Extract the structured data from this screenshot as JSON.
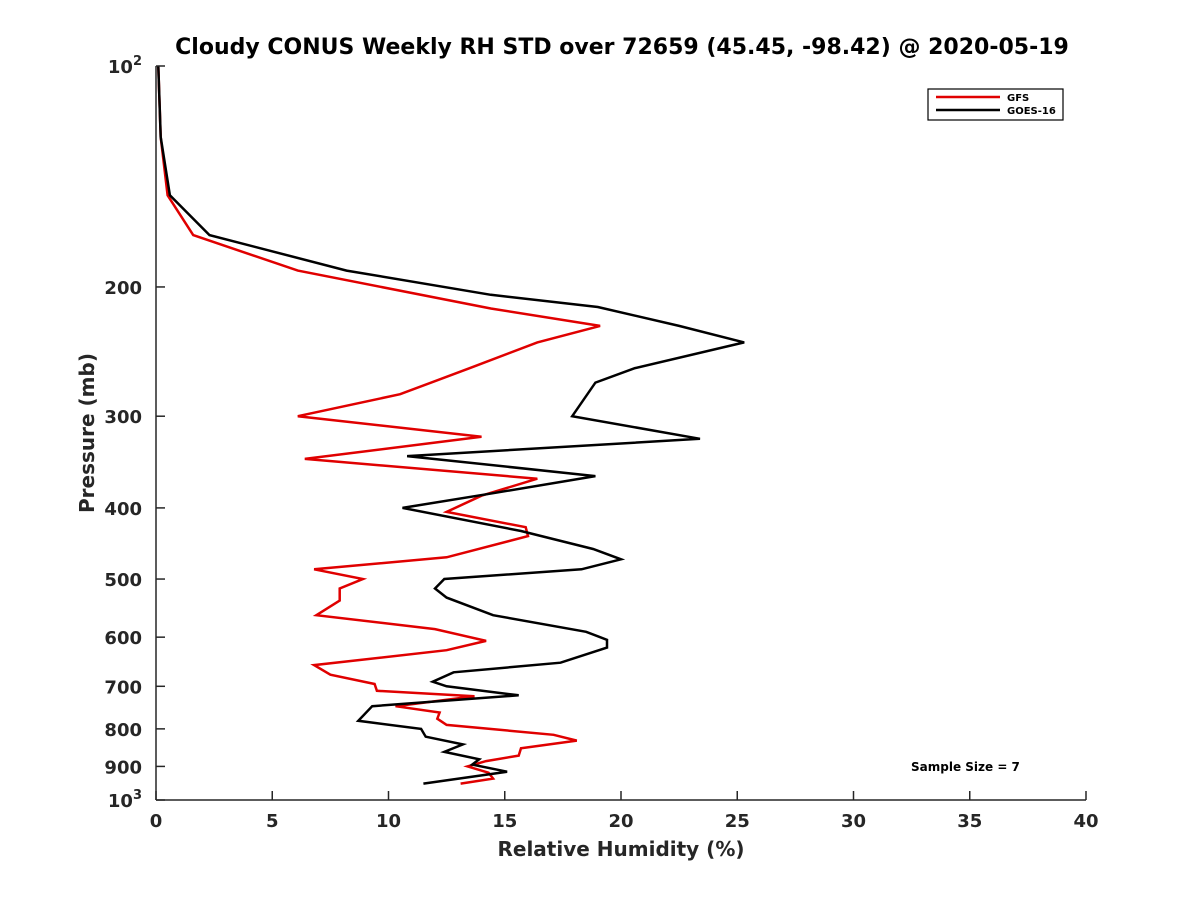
{
  "chart_data": {
    "type": "line",
    "title": "Cloudy CONUS Weekly RH STD over 72659 (45.45, -98.42) @ 2020-05-19",
    "xlabel": "Relative Humidity (%)",
    "ylabel": "Pressure (mb)",
    "xlim": [
      0,
      40
    ],
    "ylim": [
      100,
      1000
    ],
    "y_scale": "log",
    "y_reversed": true,
    "grid": false,
    "legend_position": "top-right",
    "x_ticks": [
      "0",
      "5",
      "10",
      "15",
      "20",
      "25",
      "30",
      "35",
      "40"
    ],
    "y_ticks": [
      {
        "value": 100,
        "base": "10",
        "exp": "2"
      },
      {
        "value": 200,
        "label": "200"
      },
      {
        "value": 300,
        "label": "300"
      },
      {
        "value": 400,
        "label": "400"
      },
      {
        "value": 500,
        "label": "500"
      },
      {
        "value": 600,
        "label": "600"
      },
      {
        "value": 700,
        "label": "700"
      },
      {
        "value": 800,
        "label": "800"
      },
      {
        "value": 900,
        "label": "900"
      },
      {
        "value": 1000,
        "base": "10",
        "exp": "3"
      }
    ],
    "annotation": "Sample Size = 7",
    "series": [
      {
        "name": "GFS",
        "color": "#e00000",
        "points": [
          [
            0.1,
            100
          ],
          [
            0.2,
            125
          ],
          [
            0.5,
            150
          ],
          [
            1.6,
            170
          ],
          [
            6.1,
            190
          ],
          [
            14.4,
            214
          ],
          [
            19.1,
            226
          ],
          [
            16.4,
            238
          ],
          [
            13.5,
            258
          ],
          [
            10.5,
            280
          ],
          [
            6.1,
            300
          ],
          [
            14.0,
            320
          ],
          [
            6.4,
            343
          ],
          [
            16.4,
            365
          ],
          [
            14.0,
            385
          ],
          [
            12.5,
            405
          ],
          [
            15.9,
            425
          ],
          [
            16.0,
            437
          ],
          [
            12.5,
            467
          ],
          [
            6.8,
            485
          ],
          [
            8.9,
            500
          ],
          [
            7.9,
            515
          ],
          [
            7.9,
            535
          ],
          [
            6.9,
            560
          ],
          [
            12.0,
            585
          ],
          [
            14.2,
            607
          ],
          [
            12.5,
            625
          ],
          [
            6.8,
            655
          ],
          [
            7.5,
            675
          ],
          [
            9.4,
            695
          ],
          [
            9.5,
            710
          ],
          [
            13.7,
            722
          ],
          [
            10.3,
            745
          ],
          [
            12.2,
            760
          ],
          [
            12.1,
            775
          ],
          [
            12.5,
            790
          ],
          [
            17.1,
            815
          ],
          [
            18.1,
            830
          ],
          [
            15.7,
            850
          ],
          [
            15.6,
            870
          ],
          [
            14.2,
            885
          ],
          [
            13.4,
            900
          ],
          [
            14.3,
            918
          ],
          [
            14.5,
            935
          ],
          [
            13.1,
            950
          ]
        ]
      },
      {
        "name": "GOES-16",
        "color": "#000000",
        "points": [
          [
            0.1,
            100
          ],
          [
            0.2,
            125
          ],
          [
            0.6,
            150
          ],
          [
            2.3,
            170
          ],
          [
            8.2,
            190
          ],
          [
            14.4,
            205
          ],
          [
            19.0,
            213
          ],
          [
            22.5,
            226
          ],
          [
            25.3,
            238
          ],
          [
            20.6,
            258
          ],
          [
            18.9,
            270
          ],
          [
            17.9,
            300
          ],
          [
            23.4,
            322
          ],
          [
            10.8,
            340
          ],
          [
            18.9,
            362
          ],
          [
            14.5,
            382
          ],
          [
            10.6,
            400
          ],
          [
            15.7,
            430
          ],
          [
            18.8,
            455
          ],
          [
            20.0,
            470
          ],
          [
            18.3,
            485
          ],
          [
            12.4,
            500
          ],
          [
            12.0,
            515
          ],
          [
            12.5,
            530
          ],
          [
            14.5,
            560
          ],
          [
            18.5,
            590
          ],
          [
            19.4,
            605
          ],
          [
            19.4,
            620
          ],
          [
            17.4,
            650
          ],
          [
            12.8,
            670
          ],
          [
            11.9,
            690
          ],
          [
            12.5,
            700
          ],
          [
            15.6,
            720
          ],
          [
            9.3,
            745
          ],
          [
            8.7,
            780
          ],
          [
            11.4,
            800
          ],
          [
            11.6,
            820
          ],
          [
            13.2,
            840
          ],
          [
            12.4,
            860
          ],
          [
            13.9,
            880
          ],
          [
            13.6,
            895
          ],
          [
            15.1,
            915
          ],
          [
            11.5,
            950
          ]
        ]
      }
    ]
  }
}
